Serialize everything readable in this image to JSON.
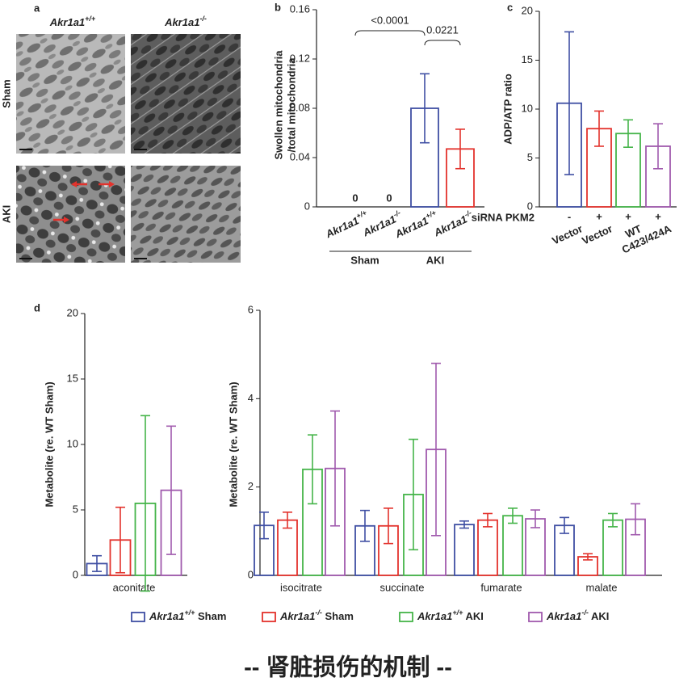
{
  "panel_a": {
    "panel_label": "a",
    "columns": [
      "Akr1a1+/+",
      "Akr1a1-/-"
    ],
    "rows": [
      "Sham",
      "AKI"
    ]
  },
  "chart_data": [
    {
      "type": "bar",
      "panel_label": "b",
      "ylabel": [
        "Swollen mitochondria",
        "/total mitochondria"
      ],
      "categories": [
        "Akr1a1+/+",
        "Akr1a1-/-",
        "Akr1a1+/+",
        "Akr1a1-/-"
      ],
      "group_labels": [
        "Sham",
        "AKI"
      ],
      "values": [
        0,
        0,
        0.08,
        0.047
      ],
      "errors": [
        0,
        0,
        0.028,
        0.016
      ],
      "colors": [
        "#3f4fa3",
        "#e3322c",
        "#3f4fa3",
        "#e3322c"
      ],
      "annotations": [
        "<0.0001",
        "0.0221"
      ],
      "ylim": [
        0,
        0.16
      ],
      "yticks": [
        0,
        0.04,
        0.08,
        0.12,
        0.16
      ]
    },
    {
      "type": "bar",
      "panel_label": "c",
      "ylabel": [
        "ADP/ATP ratio"
      ],
      "row_label": "siRNA PKM2",
      "row_values": [
        "-",
        "+",
        "+",
        "+"
      ],
      "categories": [
        "Vector",
        "Vector",
        "WT",
        "C423/424A"
      ],
      "values": [
        10.6,
        8.0,
        7.5,
        6.2
      ],
      "errors": [
        7.3,
        1.8,
        1.4,
        2.3
      ],
      "colors": [
        "#3f4fa3",
        "#e3322c",
        "#45b449",
        "#a05aad"
      ],
      "ylim": [
        0,
        20
      ],
      "yticks": [
        0,
        5,
        10,
        15,
        20
      ]
    },
    {
      "type": "grouped_bar",
      "panel_label": "d",
      "ylabel": [
        "Metabolite (re. WT Sham)"
      ],
      "categories": [
        "aconitate"
      ],
      "series": [
        {
          "color": "#3f4fa3",
          "values": [
            0.9
          ],
          "errors": [
            0.6
          ]
        },
        {
          "color": "#e3322c",
          "values": [
            2.7
          ],
          "errors": [
            2.5
          ]
        },
        {
          "color": "#45b449",
          "values": [
            5.5
          ],
          "errors": [
            6.7
          ]
        },
        {
          "color": "#a05aad",
          "values": [
            6.5
          ],
          "errors": [
            4.9
          ]
        }
      ],
      "ylim": [
        0,
        20
      ],
      "yticks": [
        0,
        5,
        10,
        15,
        20
      ]
    },
    {
      "type": "grouped_bar",
      "ylabel": [
        "Metabolite (re. WT Sham)"
      ],
      "categories": [
        "isocitrate",
        "succinate",
        "fumarate",
        "malate"
      ],
      "series": [
        {
          "name": "Akr1a1+/+ Sham",
          "color": "#3f4fa3",
          "values": [
            1.13,
            1.12,
            1.15,
            1.13
          ],
          "errors": [
            0.3,
            0.35,
            0.08,
            0.18
          ]
        },
        {
          "name": "Akr1a1-/- Sham",
          "color": "#e3322c",
          "values": [
            1.25,
            1.12,
            1.25,
            0.42
          ],
          "errors": [
            0.18,
            0.4,
            0.15,
            0.07
          ]
        },
        {
          "name": "Akr1a1+/+ AKI",
          "color": "#45b449",
          "values": [
            2.4,
            1.83,
            1.35,
            1.25
          ],
          "errors": [
            0.78,
            1.25,
            0.17,
            0.15
          ]
        },
        {
          "name": "Akr1a1-/- AKI",
          "color": "#a05aad",
          "values": [
            2.42,
            2.85,
            1.28,
            1.27
          ],
          "errors": [
            1.3,
            1.95,
            0.2,
            0.35
          ]
        }
      ],
      "ylim": [
        0,
        6
      ],
      "yticks": [
        0,
        2,
        4,
        6
      ]
    }
  ],
  "footer": "-- 肾脏损伤的机制 --"
}
